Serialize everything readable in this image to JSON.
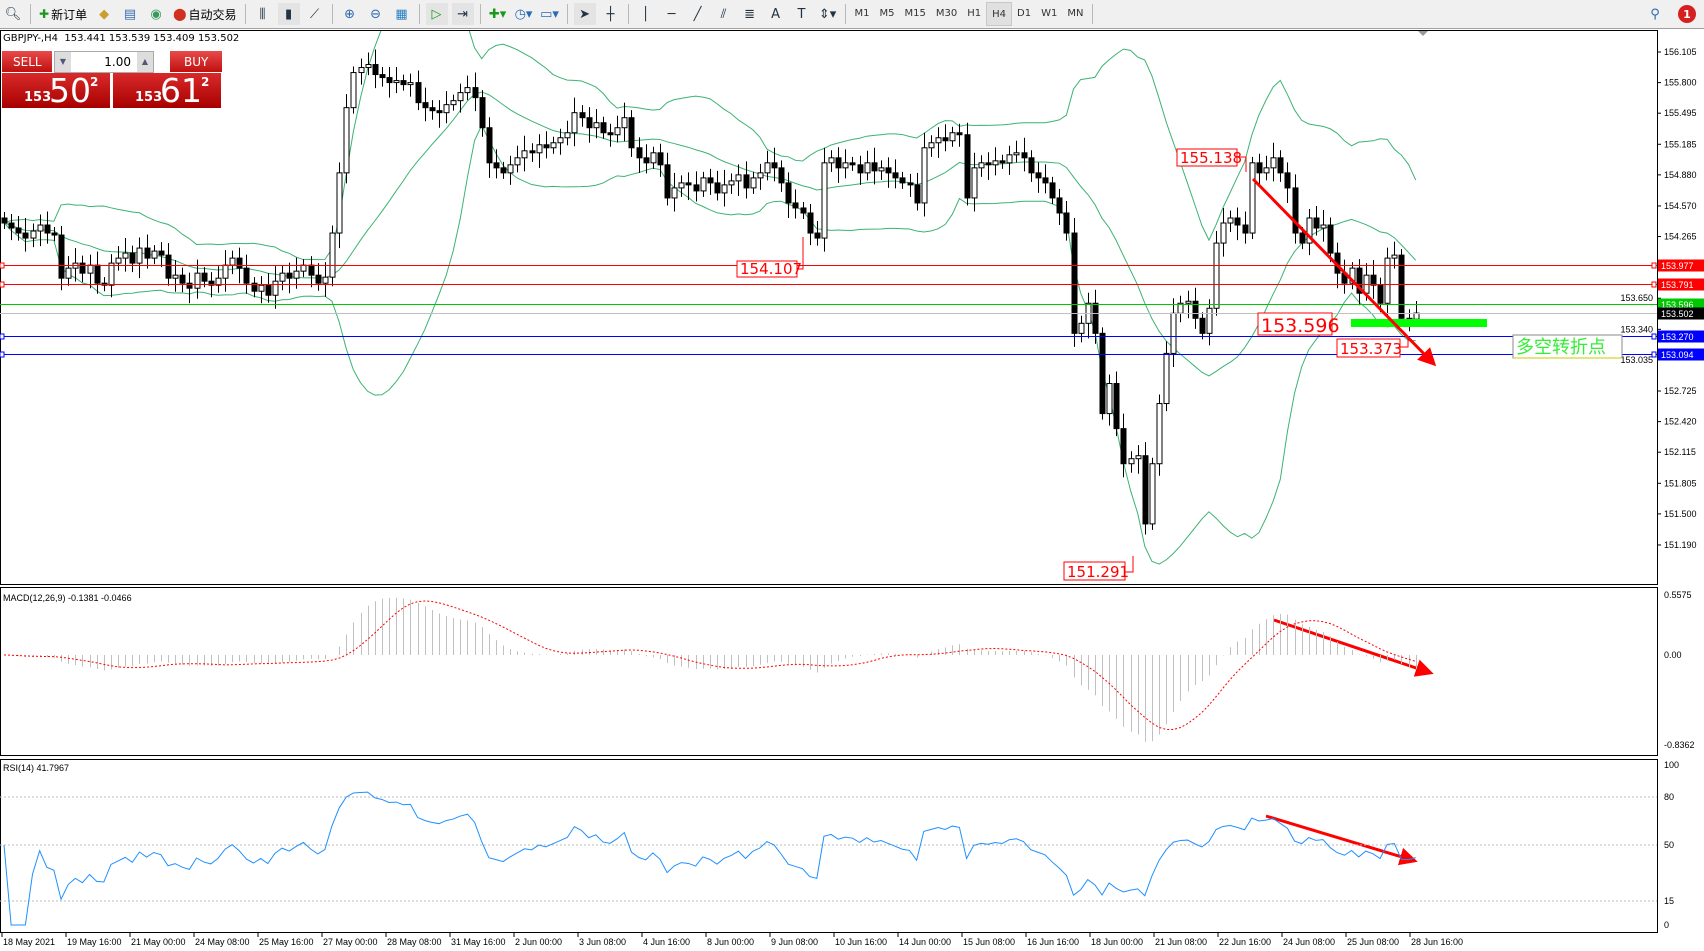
{
  "toolbar": {
    "left_icons": [
      "zoom-icon",
      "new-order-icon",
      "market-watch-icon",
      "navigator-icon",
      "signals-icon",
      "autotrading-icon"
    ],
    "new_order_label": "新订单",
    "autotrading_label": "自动交易",
    "tools": [
      "bar-chart-icon",
      "candlestick-icon",
      "line-chart-icon",
      "zoom-in-icon",
      "zoom-out-icon",
      "tile-windows-icon",
      "auto-scroll-icon",
      "chart-shift-icon",
      "indicators-icon",
      "periods-icon",
      "templates-icon",
      "cursor-icon",
      "crosshair-icon",
      "vertical-line-icon",
      "horizontal-line-icon",
      "trendline-icon",
      "equidistant-channel-icon",
      "fibonacci-icon",
      "text-icon",
      "text-label-icon",
      "arrows-icon"
    ],
    "timeframes": [
      "M1",
      "M5",
      "M15",
      "M30",
      "H1",
      "H4",
      "D1",
      "W1",
      "MN"
    ],
    "active_timeframe": "H4",
    "notification_count": "1"
  },
  "symbol_line": "GBPJPY-,H4  153.441 153.539 153.409 153.502",
  "trade_panel": {
    "sell_label": "SELL",
    "buy_label": "BUY",
    "lots": "1.00",
    "sell_price": {
      "prefix": "153",
      "big": "50",
      "sup": "2"
    },
    "buy_price": {
      "prefix": "153",
      "big": "61",
      "sup": "2"
    }
  },
  "colors": {
    "bull": "#ffffff",
    "bear": "#000000",
    "bands": "#3cb371",
    "resistance": "#ff0000",
    "support": "#0000ff",
    "pivot": "#00c800",
    "bid": "#c0c0c0",
    "rsi": "#1e90ff",
    "macd_signal": "#ff0000",
    "macd_hist": "#c0c0c0",
    "annotation": "#ff0000"
  },
  "chart_data": {
    "type": "candlestick",
    "symbol": "GBPJPY-",
    "timeframe": "H4",
    "ohlc_last": {
      "open": 153.441,
      "high": 153.539,
      "low": 153.409,
      "close": 153.502
    },
    "ylim": [
      151.19,
      156.105
    ],
    "y_ticks": [
      "156.105",
      "155.800",
      "155.495",
      "155.185",
      "154.880",
      "154.570",
      "154.265",
      "153.650",
      "153.340",
      "153.035",
      "152.725",
      "152.420",
      "152.115",
      "151.805",
      "151.500",
      "151.190"
    ],
    "x_ticks": [
      "18 May 2021",
      "19 May 16:00",
      "21 May 00:00",
      "24 May 08:00",
      "25 May 16:00",
      "27 May 00:00",
      "28 May 08:00",
      "31 May 16:00",
      "2 Jun 00:00",
      "3 Jun 08:00",
      "4 Jun 16:00",
      "8 Jun 00:00",
      "9 Jun 08:00",
      "10 Jun 16:00",
      "14 Jun 00:00",
      "15 Jun 08:00",
      "16 Jun 16:00",
      "18 Jun 00:00",
      "21 Jun 08:00",
      "22 Jun 16:00",
      "24 Jun 08:00",
      "25 Jun 08:00",
      "28 Jun 16:00"
    ],
    "closes": [
      154.4,
      154.35,
      154.3,
      154.25,
      154.32,
      154.38,
      154.3,
      154.28,
      153.85,
      153.95,
      154.0,
      153.9,
      153.98,
      153.8,
      153.78,
      154.0,
      154.05,
      154.1,
      154.0,
      154.15,
      154.05,
      154.12,
      154.08,
      153.85,
      153.88,
      153.8,
      153.75,
      153.9,
      153.82,
      153.78,
      153.85,
      153.98,
      154.05,
      153.95,
      153.8,
      153.72,
      153.78,
      153.68,
      153.82,
      153.9,
      153.85,
      153.92,
      153.98,
      153.88,
      153.8,
      153.86,
      154.3,
      154.9,
      155.55,
      155.9,
      155.95,
      155.98,
      155.88,
      155.85,
      155.8,
      155.82,
      155.78,
      155.8,
      155.6,
      155.55,
      155.52,
      155.5,
      155.58,
      155.62,
      155.7,
      155.75,
      155.65,
      155.35,
      155.0,
      154.95,
      154.9,
      154.98,
      155.05,
      155.12,
      155.1,
      155.18,
      155.15,
      155.2,
      155.25,
      155.3,
      155.5,
      155.45,
      155.35,
      155.4,
      155.3,
      155.28,
      155.35,
      155.45,
      155.15,
      155.05,
      155.0,
      155.1,
      154.98,
      154.65,
      154.75,
      154.8,
      154.78,
      154.72,
      154.85,
      154.8,
      154.7,
      154.78,
      154.82,
      154.88,
      154.75,
      154.85,
      154.9,
      155.0,
      154.95,
      154.8,
      154.6,
      154.55,
      154.5,
      154.3,
      154.25,
      155.0,
      155.05,
      154.95,
      155.0,
      154.98,
      154.9,
      155.0,
      154.92,
      154.95,
      154.9,
      154.85,
      154.8,
      154.78,
      154.6,
      155.15,
      155.2,
      155.25,
      155.22,
      155.3,
      155.28,
      154.65,
      154.95,
      155.0,
      154.98,
      155.02,
      155.0,
      155.08,
      155.1,
      155.05,
      154.9,
      154.85,
      154.8,
      154.65,
      154.5,
      154.3,
      153.3,
      153.4,
      153.6,
      153.3,
      152.5,
      152.8,
      152.35,
      152.0,
      152.05,
      152.08,
      151.4,
      152.0,
      152.6,
      153.1,
      153.5,
      153.6,
      153.62,
      153.45,
      153.3,
      153.55,
      154.2,
      154.4,
      154.45,
      154.38,
      154.3,
      155.0,
      154.9,
      154.95,
      155.05,
      154.9,
      154.75,
      154.3,
      154.2,
      154.45,
      154.35,
      154.38,
      154.1,
      153.9,
      153.8,
      153.95,
      153.7,
      153.88,
      153.78,
      153.6,
      154.05,
      154.08,
      153.45,
      153.441,
      153.502
    ],
    "bollinger": {
      "period": 20,
      "deviations": 2
    },
    "horizontal_lines": [
      {
        "price": 153.977,
        "label": "153.977",
        "kind": "resistance"
      },
      {
        "price": 153.791,
        "label": "153.791",
        "kind": "resistance"
      },
      {
        "price": 153.596,
        "label": "153.596",
        "kind": "pivot"
      },
      {
        "price": 153.502,
        "label": "153.502",
        "kind": "bid"
      },
      {
        "price": 153.27,
        "label": "153.270",
        "kind": "support"
      },
      {
        "price": 153.094,
        "label": "153.094",
        "kind": "support"
      }
    ],
    "annotations": [
      {
        "text": "154.107",
        "price": 154.107
      },
      {
        "text": "155.138",
        "price": 155.138
      },
      {
        "text": "151.291",
        "price": 151.291
      },
      {
        "text": "153.596",
        "price": 153.596
      },
      {
        "text": "153.373",
        "price": 153.373
      }
    ],
    "pivot_note": "多空转折点",
    "macd": {
      "label": "MACD(12,26,9) -0.1381 -0.0466",
      "params": [
        12,
        26,
        9
      ],
      "ylim": [
        -0.8362,
        0.5575
      ],
      "y_ticks": [
        "0.5575",
        "0.00",
        "-0.8362"
      ]
    },
    "rsi": {
      "label": "RSI(14) 41.7967",
      "period": 14,
      "levels": [
        80,
        50,
        15
      ],
      "y_ticks": [
        "100",
        "80",
        "50",
        "15",
        "0"
      ]
    }
  }
}
